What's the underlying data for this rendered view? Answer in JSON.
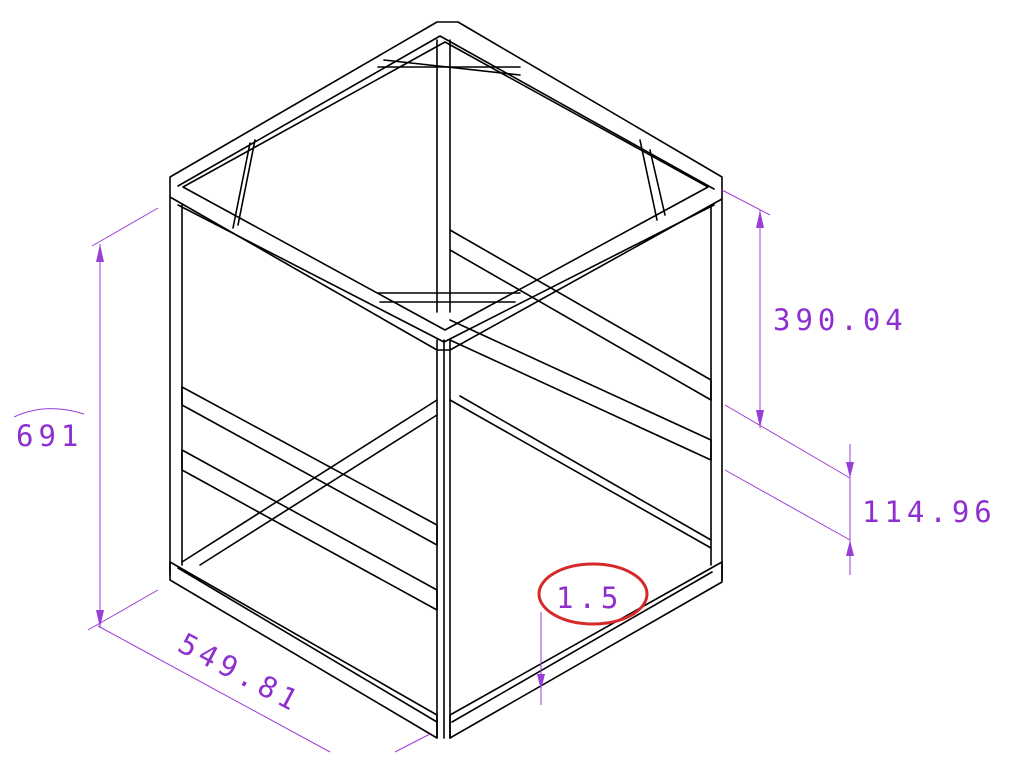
{
  "dimensions": {
    "height": "691",
    "depth": "549.81",
    "upper_offset": "390.04",
    "rail_spacing": "114.96",
    "sheet_thickness": "1.5"
  },
  "colors": {
    "dimension": "#9a3fd6",
    "dimension_text": "#8e2fd0",
    "highlight": "#d62a2a",
    "frame": "#000000",
    "background": "#ffffff"
  }
}
